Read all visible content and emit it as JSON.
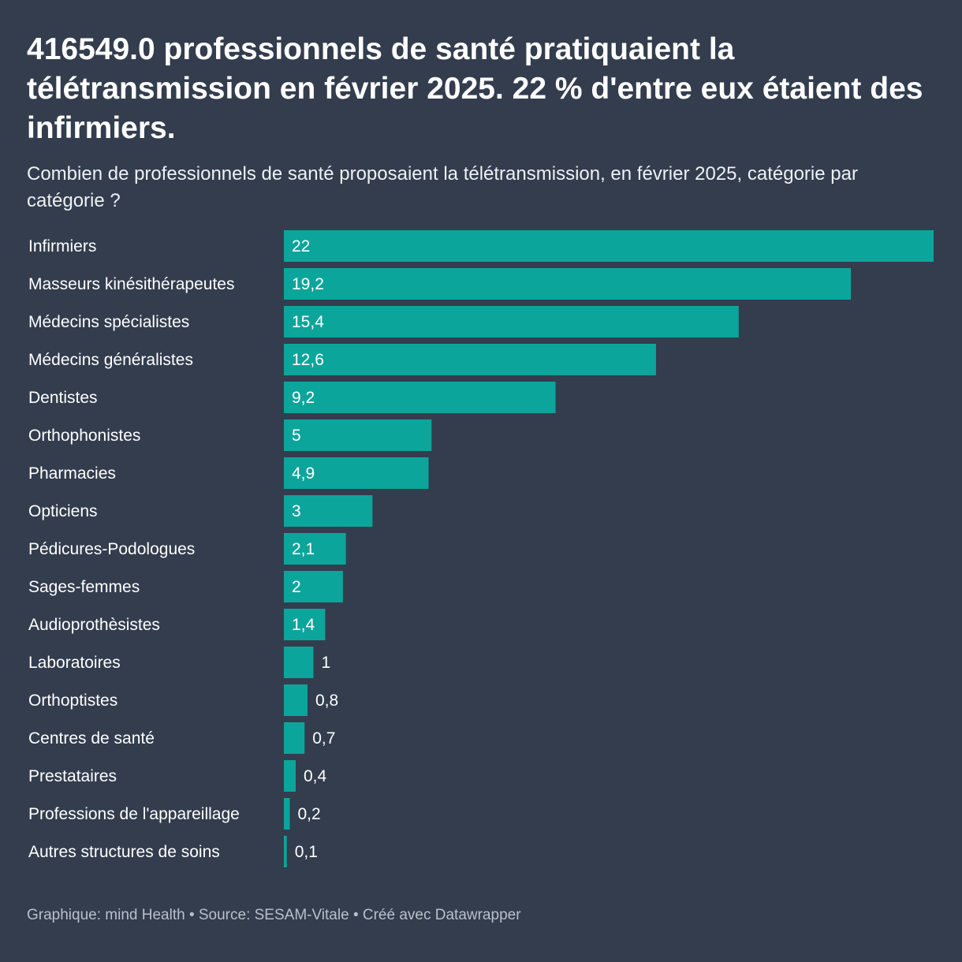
{
  "chart_data": {
    "type": "bar",
    "orientation": "horizontal",
    "title": "416549.0 professionnels de santé pratiquaient la télétransmission en février 2025. 22 % d'entre eux étaient des infirmiers.",
    "subtitle": "Combien de professionnels de santé proposaient la télétransmission, en février 2025, catégorie par catégorie ?",
    "categories": [
      "Infirmiers",
      "Masseurs kinésithérapeutes",
      "Médecins spécialistes",
      "Médecins généralistes",
      "Dentistes",
      "Orthophonistes",
      "Pharmacies",
      "Opticiens",
      "Pédicures-Podologues",
      "Sages-femmes",
      "Audioprothèsistes",
      "Laboratoires",
      "Orthoptistes",
      "Centres de santé",
      "Prestataires",
      "Professions de l'appareillage",
      "Autres structures de soins"
    ],
    "values": [
      22,
      19.2,
      15.4,
      12.6,
      9.2,
      5,
      4.9,
      3,
      2.1,
      2,
      1.4,
      1,
      0.8,
      0.7,
      0.4,
      0.2,
      0.1
    ],
    "value_labels": [
      "22",
      "19,2",
      "15,4",
      "12,6",
      "9,2",
      "5",
      "4,9",
      "3",
      "2,1",
      "2",
      "1,4",
      "1",
      "0,8",
      "0,7",
      "0,4",
      "0,2",
      "0,1"
    ],
    "xlim": [
      0,
      22
    ],
    "grid": false,
    "legend": "none",
    "bar_color": "#0ca59b",
    "background_color": "#333d4e"
  },
  "footer": {
    "text": "Graphique: mind Health • Source: SESAM-Vitale • Créé avec Datawrapper"
  }
}
